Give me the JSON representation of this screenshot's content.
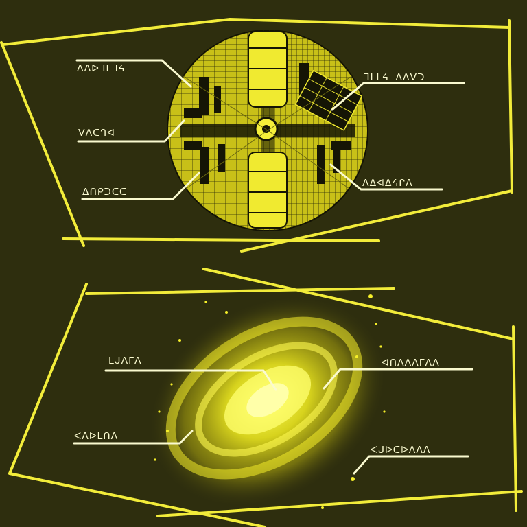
{
  "colors": {
    "background": "#2e2e0e",
    "frame": "#f2ec3a",
    "glow": "#ffff2a",
    "label": "#fafad0"
  },
  "station_panel": {
    "labels": [
      {
        "text": "ᐃᐱᐅᒧᒪᒧᔦ"
      },
      {
        "text": "ᐯᐱᑕᒉᐊ"
      },
      {
        "text": "ᐃᑎᑭᑐᑕᑕ"
      },
      {
        "text": "ᒣᒪᒪᔦ ᐃᐃᐯᑐ"
      },
      {
        "text": "ᐱᐃᐊᐃᔦᒋᐱ"
      }
    ]
  },
  "galaxy_panel": {
    "labels": [
      {
        "text": "ᒪᒍᐱᒥᐱ"
      },
      {
        "text": "ᐊᑎᐱᐱᐱᒥᐱᐱ"
      },
      {
        "text": "ᐸᐱᐅᒪᑎᐱ"
      },
      {
        "text": "ᐸᒍᐅᑕᐅᐱᐱᐱ"
      }
    ]
  }
}
